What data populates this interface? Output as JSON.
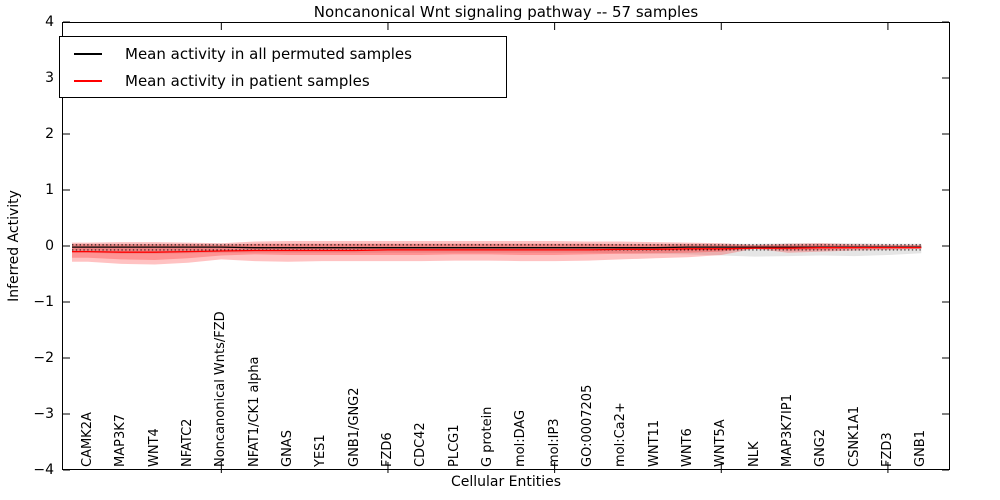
{
  "title": "Noncanonical Wnt signaling pathway -- 57 samples",
  "axes": {
    "xlabel": "Cellular Entities",
    "ylabel": "Inferred Activity",
    "ytick_labels": [
      "4",
      "3",
      "2",
      "1",
      "0",
      "−1",
      "−2",
      "−3",
      "−4"
    ],
    "ytick_values": [
      4,
      3,
      2,
      1,
      0,
      -1,
      -2,
      -3,
      -4
    ]
  },
  "legend": {
    "items": [
      {
        "label": "Mean activity in all permuted samples",
        "color": "#000000"
      },
      {
        "label": "Mean activity in patient samples",
        "color": "#ff0000"
      }
    ]
  },
  "colors": {
    "permuted_line": "#000000",
    "patient_line": "#ff0000",
    "patient_fill": "rgba(255,0,0,0.24)",
    "permuted_fill": "rgba(0,0,0,0.10)",
    "background": "#ffffff"
  },
  "chart_data": {
    "type": "line",
    "title": "Noncanonical Wnt signaling pathway -- 57 samples",
    "xlabel": "Cellular Entities",
    "ylabel": "Inferred Activity",
    "ylim": [
      -4,
      4
    ],
    "grid": false,
    "legend_position": "upper left",
    "categories": [
      "CAMK2A",
      "MAP3K7",
      "WNT4",
      "NFATC2",
      "Noncanonical Wnts/FZD",
      "NFAT1/CK1 alpha",
      "GNAS",
      "YES1",
      "GNB1/GNG2",
      "FZD6",
      "CDC42",
      "PLCG1",
      "G protein",
      "mol:DAG",
      "mol:IP3",
      "GO:0007205",
      "mol:Ca2+",
      "WNT11",
      "WNT6",
      "WNT5A",
      "NLK",
      "MAP3K7IP1",
      "GNG2",
      "CSNK1A1",
      "FZD3",
      "GNB1"
    ],
    "xtick_indices": [
      4,
      9,
      14,
      19,
      24
    ],
    "series": [
      {
        "name": "Mean activity in all permuted samples",
        "style": "solid",
        "color": "#000000",
        "values": [
          -0.02,
          -0.02,
          -0.02,
          -0.02,
          -0.02,
          -0.03,
          -0.03,
          -0.03,
          -0.03,
          -0.03,
          -0.03,
          -0.03,
          -0.03,
          -0.03,
          -0.03,
          -0.03,
          -0.03,
          -0.03,
          -0.02,
          -0.02,
          -0.02,
          -0.02,
          -0.02,
          -0.02,
          -0.02,
          -0.02
        ]
      },
      {
        "name": "Mean activity in patient samples",
        "style": "solid",
        "color": "#ff0000",
        "values": [
          -0.1,
          -0.11,
          -0.11,
          -0.1,
          -0.09,
          -0.08,
          -0.08,
          -0.08,
          -0.08,
          -0.07,
          -0.07,
          -0.07,
          -0.07,
          -0.07,
          -0.07,
          -0.07,
          -0.06,
          -0.06,
          -0.05,
          -0.05,
          -0.04,
          -0.04,
          -0.03,
          -0.03,
          -0.03,
          -0.03
        ]
      }
    ],
    "dotted_guides": {
      "upper": 0.02,
      "lower": -0.07,
      "color": "#000000"
    },
    "bands": [
      {
        "name": "permuted-std-band",
        "fill": "rgba(0,0,0,0.10)",
        "upper": [
          0.04,
          0.04,
          0.04,
          0.04,
          0.04,
          0.04,
          0.04,
          0.04,
          0.04,
          0.04,
          0.04,
          0.04,
          0.04,
          0.04,
          0.04,
          0.04,
          0.04,
          0.04,
          0.04,
          0.04,
          0.04,
          0.05,
          0.05,
          0.05,
          0.04,
          0.04
        ],
        "lower": [
          -0.12,
          -0.14,
          -0.14,
          -0.13,
          -0.12,
          -0.12,
          -0.12,
          -0.12,
          -0.12,
          -0.12,
          -0.12,
          -0.12,
          -0.12,
          -0.12,
          -0.12,
          -0.12,
          -0.13,
          -0.14,
          -0.15,
          -0.17,
          -0.19,
          -0.18,
          -0.17,
          -0.18,
          -0.16,
          -0.13
        ]
      },
      {
        "name": "patient-std-band-outer",
        "fill": "rgba(255,0,0,0.24)",
        "upper": [
          0.06,
          0.07,
          0.07,
          0.06,
          0.05,
          0.08,
          0.09,
          0.09,
          0.09,
          0.09,
          0.09,
          0.09,
          0.09,
          0.09,
          0.09,
          0.08,
          0.08,
          0.07,
          0.06,
          0.05,
          0.02,
          0.04,
          0.05,
          0.03,
          0.02,
          0.02
        ],
        "lower": [
          -0.28,
          -0.32,
          -0.33,
          -0.3,
          -0.24,
          -0.27,
          -0.28,
          -0.27,
          -0.27,
          -0.27,
          -0.27,
          -0.26,
          -0.26,
          -0.27,
          -0.27,
          -0.26,
          -0.24,
          -0.22,
          -0.2,
          -0.16,
          -0.05,
          -0.12,
          -0.1,
          -0.08,
          -0.07,
          -0.05
        ],
        "upper_px_note": ""
      },
      {
        "name": "patient-std-band-inner",
        "fill": "rgba(255,0,0,0.24)",
        "upper": [
          0.03,
          0.03,
          0.03,
          0.03,
          0.02,
          0.04,
          0.04,
          0.04,
          0.04,
          0.04,
          0.04,
          0.04,
          0.04,
          0.04,
          0.04,
          0.04,
          0.03,
          0.03,
          0.03,
          0.02,
          0.01,
          0.02,
          0.03,
          0.01,
          0.01,
          0.01
        ],
        "lower": [
          -0.21,
          -0.24,
          -0.25,
          -0.22,
          -0.17,
          -0.15,
          -0.16,
          -0.16,
          -0.16,
          -0.16,
          -0.16,
          -0.15,
          -0.15,
          -0.16,
          -0.16,
          -0.15,
          -0.14,
          -0.13,
          -0.12,
          -0.1,
          -0.03,
          -0.08,
          -0.07,
          -0.05,
          -0.04,
          -0.03
        ]
      }
    ]
  }
}
